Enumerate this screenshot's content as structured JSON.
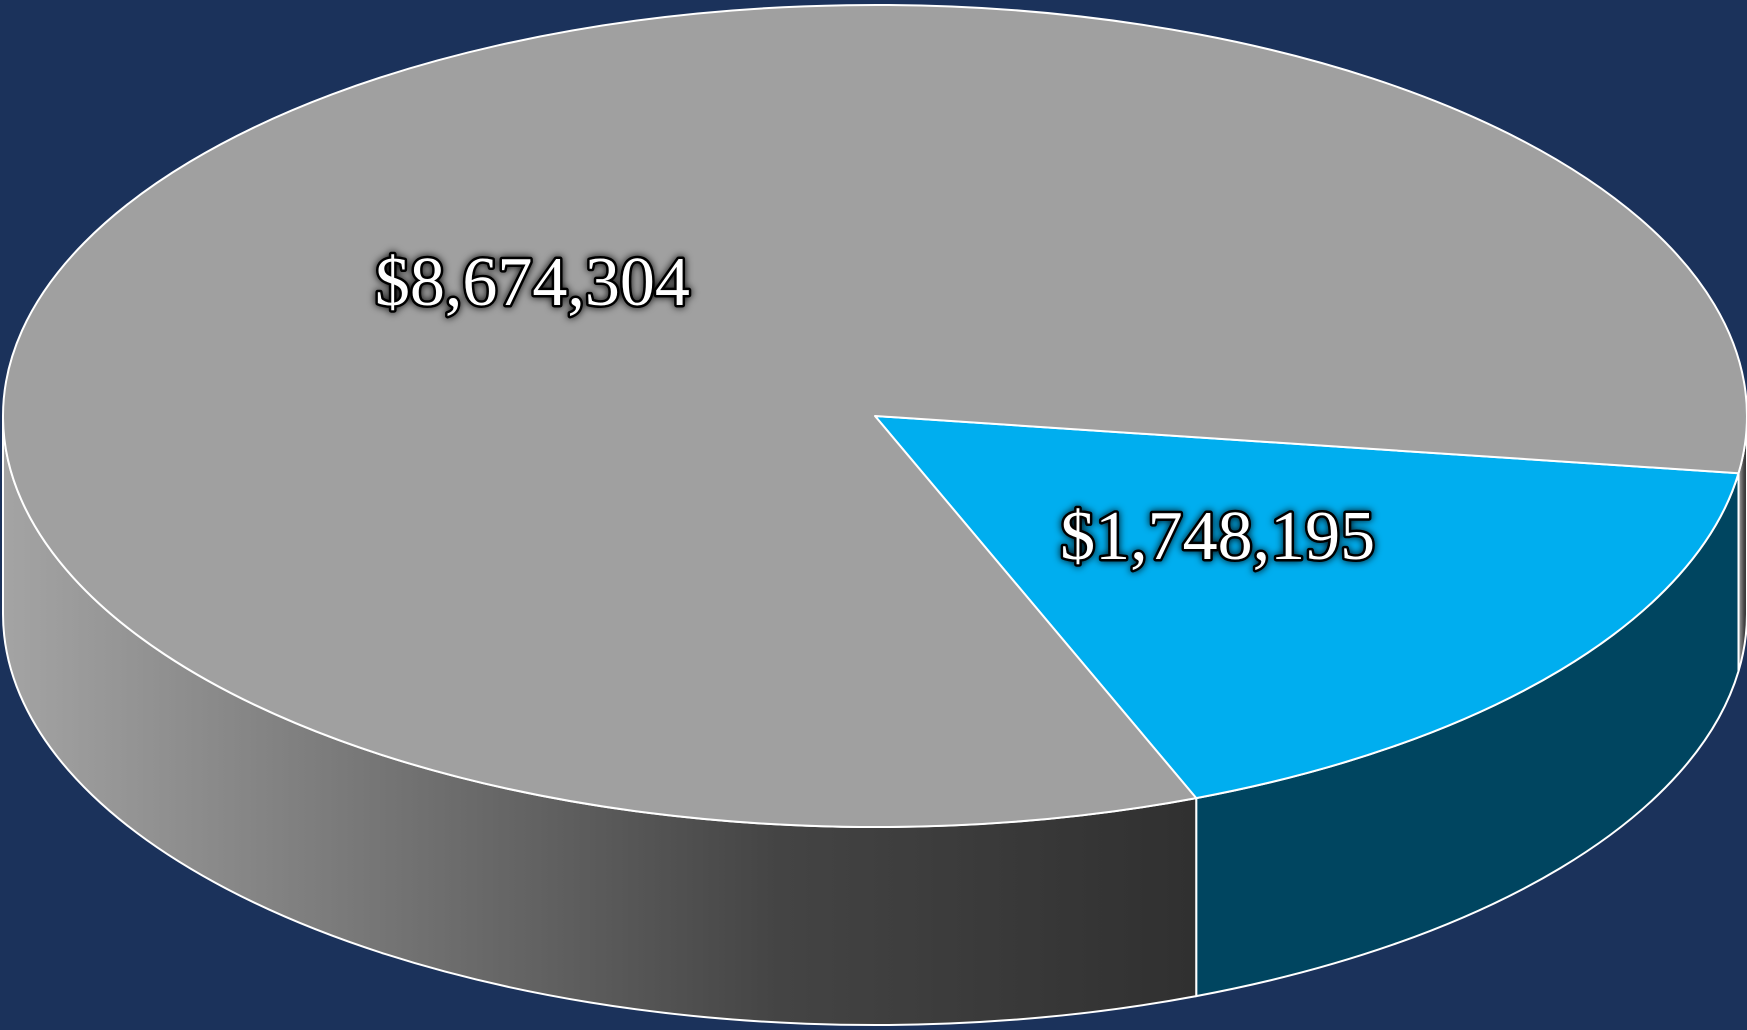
{
  "chart_data": {
    "type": "pie",
    "values": [
      8674304,
      1748195
    ],
    "value_labels": [
      "$8,674,304",
      "$1,748,195"
    ],
    "colors": [
      "#a0a0a0",
      "#00aeef"
    ],
    "side_colors": [
      "#555555",
      "#004560"
    ]
  }
}
